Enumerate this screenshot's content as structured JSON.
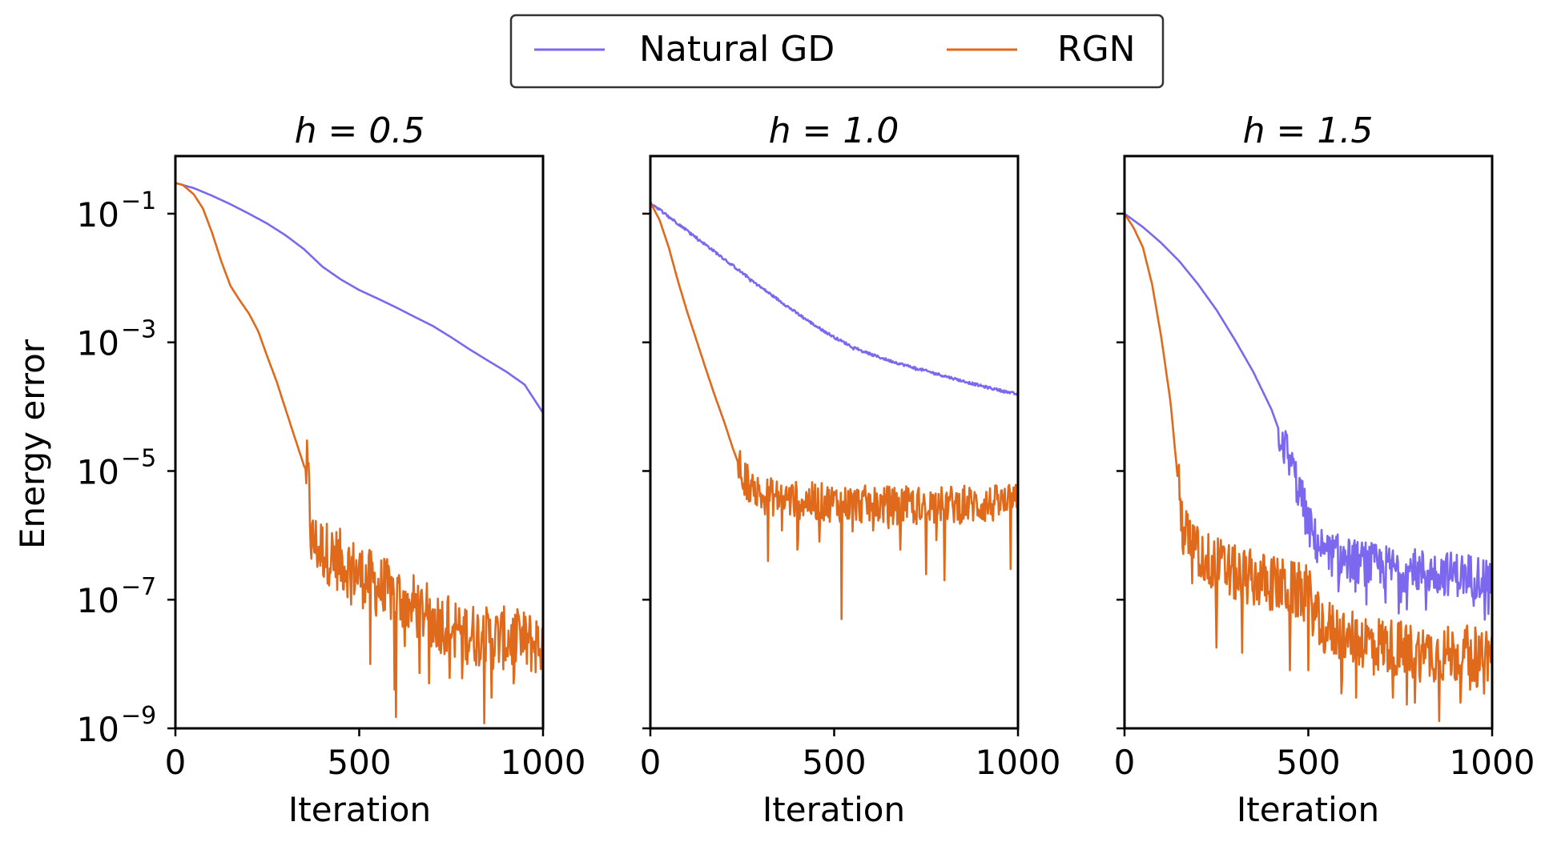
{
  "colors": {
    "natural_gd": "#7b68ee",
    "rgn": "#e06a1b",
    "axes": "#000000",
    "legend_border": "#333333"
  },
  "legend": {
    "placement": "top-center",
    "entries": [
      {
        "label": "Natural GD",
        "color": "#7b68ee"
      },
      {
        "label": "RGN",
        "color": "#e06a1b"
      }
    ]
  },
  "ylabel": "Energy error",
  "xlabel": "Iteration",
  "chart_data": [
    {
      "type": "line",
      "title": "h = 0.5",
      "xlabel": "Iteration",
      "ylabel": "Energy error",
      "xlim": [
        0,
        1000
      ],
      "ylim": [
        1e-09,
        1
      ],
      "yscale": "log",
      "xticks": [
        0,
        500,
        1000
      ],
      "yticks": [
        {
          "base": "10",
          "exp": "−1",
          "value": 0.1
        },
        {
          "base": "10",
          "exp": "−3",
          "value": 0.001
        },
        {
          "base": "10",
          "exp": "−5",
          "value": 1e-05
        },
        {
          "base": "10",
          "exp": "−7",
          "value": 1e-07
        },
        {
          "base": "10",
          "exp": "−9",
          "value": 1e-09
        }
      ],
      "series": [
        {
          "name": "Natural GD",
          "color": "#7b68ee",
          "x": [
            0,
            50,
            100,
            150,
            200,
            250,
            300,
            350,
            400,
            450,
            500,
            550,
            600,
            650,
            700,
            750,
            800,
            850,
            900,
            950,
            1000
          ],
          "y": [
            0.3,
            0.25,
            0.19,
            0.14,
            0.1,
            0.07,
            0.046,
            0.028,
            0.015,
            0.0095,
            0.0065,
            0.0048,
            0.0035,
            0.0025,
            0.0018,
            0.0012,
            0.00078,
            0.00052,
            0.00035,
            0.00022,
            8e-05
          ],
          "noise": 0
        },
        {
          "name": "RGN",
          "color": "#e06a1b",
          "x": [
            0,
            20,
            50,
            75,
            100,
            125,
            150,
            175,
            200,
            225,
            250,
            275,
            300,
            320,
            350,
            360,
            370,
            400,
            450,
            500,
            550,
            600,
            650,
            700,
            750,
            800,
            850,
            900,
            950,
            1000
          ],
          "y": [
            0.3,
            0.28,
            0.2,
            0.12,
            0.05,
            0.018,
            0.0075,
            0.0045,
            0.0028,
            0.0015,
            0.0006,
            0.00025,
            9e-05,
            4e-05,
            1.2e-05,
            9e-06,
            8e-07,
            6e-07,
            4e-07,
            2.5e-07,
            1.6e-07,
            1.2e-07,
            8e-08,
            5e-08,
            4e-08,
            3e-08,
            2.5e-08,
            2.5e-08,
            2.2e-08,
            2e-08
          ],
          "noise": 0.5,
          "noise_from": 355,
          "dips": [
            [
              600,
              1.5e-09
            ],
            [
              840,
              1.2e-09
            ],
            [
              595,
              4e-09
            ],
            [
              690,
              5e-09
            ],
            [
              860,
              3e-09
            ],
            [
              780,
              6e-09
            ],
            [
              530,
              1e-08
            ],
            [
              920,
              5e-09
            ]
          ]
        }
      ]
    },
    {
      "type": "line",
      "title": "h = 1.0",
      "xlabel": "Iteration",
      "xlim": [
        0,
        1000
      ],
      "ylim": [
        1e-09,
        1
      ],
      "yscale": "log",
      "xticks": [
        0,
        500,
        1000
      ],
      "series": [
        {
          "name": "Natural GD",
          "color": "#7b68ee",
          "x": [
            0,
            50,
            100,
            150,
            200,
            250,
            300,
            350,
            400,
            450,
            500,
            550,
            600,
            650,
            700,
            750,
            800,
            850,
            900,
            950,
            1000
          ],
          "y": [
            0.15,
            0.09,
            0.055,
            0.033,
            0.02,
            0.012,
            0.0072,
            0.0045,
            0.0028,
            0.0018,
            0.0012,
            0.00085,
            0.00065,
            0.00052,
            0.00043,
            0.00036,
            0.0003,
            0.00025,
            0.00021,
            0.00018,
            0.000155
          ],
          "noise": 0.02
        },
        {
          "name": "RGN",
          "color": "#e06a1b",
          "x": [
            0,
            25,
            50,
            75,
            100,
            125,
            150,
            175,
            200,
            225,
            250,
            275,
            300,
            400,
            500,
            600,
            700,
            800,
            900,
            1000
          ],
          "y": [
            0.15,
            0.08,
            0.03,
            0.009,
            0.003,
            0.0011,
            0.0004,
            0.00015,
            6e-05,
            2.2e-05,
            9e-06,
            5.5e-06,
            4.2e-06,
            3.5e-06,
            3.2e-06,
            3e-06,
            2.9e-06,
            3e-06,
            3e-06,
            3.2e-06
          ],
          "noise": 0.3,
          "noise_from": 240,
          "dips": [
            [
              520,
              5e-08
            ],
            [
              320,
              4e-07
            ],
            [
              460,
              8e-07
            ],
            [
              750,
              2.5e-07
            ],
            [
              800,
              2e-07
            ],
            [
              980,
              3e-07
            ],
            [
              1000,
              3.5e-07
            ],
            [
              400,
              6e-07
            ],
            [
              680,
              6e-07
            ]
          ]
        }
      ]
    },
    {
      "type": "line",
      "title": "h = 1.5",
      "xlabel": "Iteration",
      "xlim": [
        0,
        1000
      ],
      "ylim": [
        1e-09,
        1
      ],
      "yscale": "log",
      "xticks": [
        0,
        500,
        1000
      ],
      "series": [
        {
          "name": "Natural GD",
          "color": "#7b68ee",
          "x": [
            0,
            50,
            100,
            150,
            200,
            250,
            300,
            350,
            400,
            430,
            460,
            480,
            500,
            520,
            550,
            600,
            700,
            800,
            900,
            1000
          ],
          "y": [
            0.1,
            0.062,
            0.035,
            0.018,
            0.008,
            0.0032,
            0.0011,
            0.00035,
            9e-05,
            3e-05,
            9.5e-06,
            4e-06,
            1.5e-06,
            8e-07,
            5.5e-07,
            4.2e-07,
            3.2e-07,
            2.8e-07,
            2.5e-07,
            2.2e-07
          ],
          "noise": 0.35,
          "noise_from": 420,
          "dips": [
            [
              820,
              7e-08
            ],
            [
              710,
              9e-08
            ],
            [
              950,
              8e-08
            ],
            [
              990,
              6e-08
            ]
          ]
        },
        {
          "name": "RGN",
          "color": "#e06a1b",
          "x": [
            0,
            25,
            50,
            75,
            100,
            125,
            140,
            150,
            160,
            200,
            300,
            400,
            500,
            530,
            600,
            700,
            800,
            900,
            1000
          ],
          "y": [
            0.1,
            0.06,
            0.03,
            0.008,
            0.0012,
            0.00012,
            1.5e-05,
            3.5e-06,
            1.2e-06,
            5e-07,
            2.5e-07,
            1.8e-07,
            1.2e-07,
            4e-08,
            2.8e-08,
            2e-08,
            1.5e-08,
            1.4e-08,
            1.5e-08
          ],
          "noise": 0.45,
          "noise_from": 145,
          "dips": [
            [
              855,
              1.3e-09
            ],
            [
              790,
              2.5e-09
            ],
            [
              630,
              3e-09
            ],
            [
              590,
              3.5e-09
            ],
            [
              500,
              8e-09
            ],
            [
              730,
              3e-09
            ],
            [
              940,
              4e-09
            ],
            [
              320,
              1.5e-08
            ],
            [
              250,
              1.8e-08
            ],
            [
              450,
              8e-09
            ]
          ]
        }
      ]
    }
  ]
}
